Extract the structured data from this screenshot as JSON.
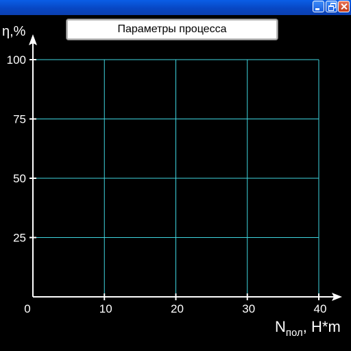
{
  "window": {
    "minimize_icon": "minimize-icon",
    "maximize_icon": "restore-icon",
    "close_icon": "close-icon"
  },
  "panel_title": "Параметры процесса",
  "chart_data": {
    "type": "line",
    "title": "",
    "ylabel": "η,%",
    "xlabel_main": "N",
    "xlabel_sub": "пол",
    "xlabel_unit": ", H*m",
    "xlim": [
      0,
      40
    ],
    "ylim": [
      0,
      100
    ],
    "x_ticks": [
      0,
      10,
      20,
      30,
      40
    ],
    "y_ticks": [
      25,
      50,
      75,
      100
    ],
    "x_tick_labels": [
      "0",
      "10",
      "20",
      "30",
      "40"
    ],
    "y_tick_labels": [
      "25",
      "50",
      "75",
      "100"
    ],
    "grid": true,
    "series": [],
    "colors": {
      "background": "#000000",
      "grid": "#3fd6e0",
      "axis": "#ffffff",
      "text": "#ffffff"
    }
  }
}
